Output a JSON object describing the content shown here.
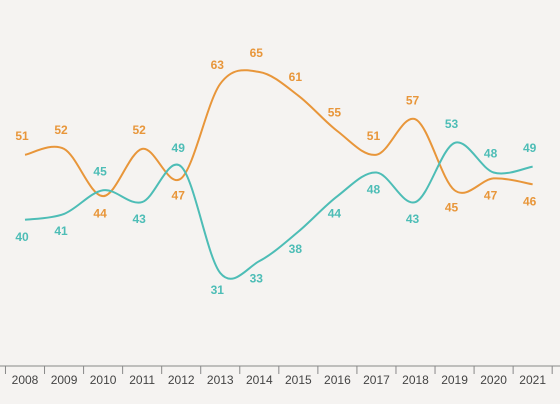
{
  "chart_data": {
    "type": "line",
    "categories": [
      "2008",
      "2009",
      "2010",
      "2011",
      "2012",
      "2013",
      "2014",
      "2015",
      "2016",
      "2017",
      "2018",
      "2019",
      "2020",
      "2021"
    ],
    "series": [
      {
        "color": "#e8963a",
        "values": [
          51,
          52,
          44,
          52,
          47,
          63,
          65,
          61,
          55,
          51,
          57,
          45,
          47,
          46
        ]
      },
      {
        "color": "#4dbdb6",
        "values": [
          40,
          41,
          45,
          43,
          49,
          31,
          33,
          38,
          44,
          48,
          43,
          53,
          48,
          49
        ]
      }
    ]
  }
}
